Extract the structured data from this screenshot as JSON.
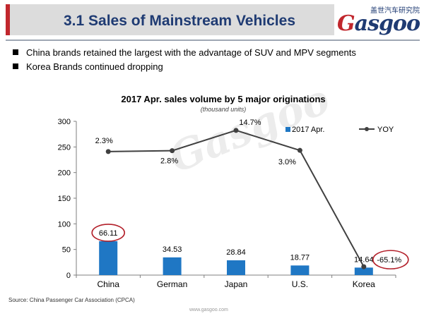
{
  "header": {
    "title": "3.1 Sales of Mainstream Vehicles",
    "logo_cn": "盖世汽车研究院",
    "logo_text_first": "G",
    "logo_text_rest": "asgoo"
  },
  "bullets": [
    "China brands retained the largest with the advantage of SUV and MPV segments",
    "Korea Brands continued dropping"
  ],
  "chart_data": {
    "type": "bar",
    "title": "2017 Apr. sales volume by 5 major originations",
    "subtitle": "(thousand units)",
    "categories": [
      "China",
      "German",
      "Japan",
      "U.S.",
      "Korea"
    ],
    "ylim": [
      0,
      300
    ],
    "yticks": [
      0,
      50,
      100,
      150,
      200,
      250,
      300
    ],
    "series": [
      {
        "name": "2017 Apr.",
        "type": "bar",
        "values": [
          66.11,
          34.53,
          28.84,
          18.77,
          14.64
        ],
        "labels": [
          "66.11",
          "34.53",
          "28.84",
          "18.77",
          "14.64"
        ],
        "color": "#1f77c4"
      },
      {
        "name": "YOY",
        "type": "line",
        "values": [
          2.3,
          2.8,
          14.7,
          3.0,
          -65.1
        ],
        "labels": [
          "2.3%",
          "2.8%",
          "14.7%",
          "3.0%",
          "-65.1%"
        ],
        "color": "#404040"
      }
    ],
    "legend_position": "top-right",
    "grid": false,
    "highlighted_points": [
      "China 66.11",
      "Korea -65.1%"
    ]
  },
  "watermark": "Gasgoo",
  "source": "Source: China Passenger Car Association (CPCA)",
  "footer_url": "www.gasgoo.com"
}
